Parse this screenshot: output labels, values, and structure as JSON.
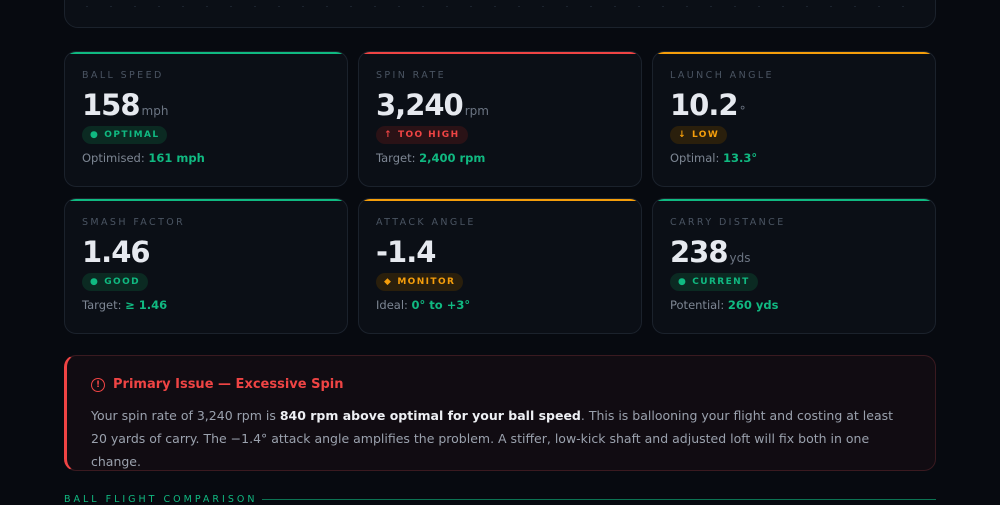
{
  "metrics": [
    {
      "label": "BALL SPEED",
      "value": "158",
      "unit": "mph",
      "badge": "OPTIMAL",
      "badge_icon": "dot-icon",
      "status_color": "#10b981",
      "foot_label": "Optimised:",
      "foot_value": "161 mph"
    },
    {
      "label": "SPIN RATE",
      "value": "3,240",
      "unit": "rpm",
      "badge": "TOO HIGH",
      "badge_icon": "arrow-up-icon",
      "status_color": "#ef4444",
      "foot_label": "Target:",
      "foot_value": "2,400 rpm"
    },
    {
      "label": "LAUNCH ANGLE",
      "value": "10.2",
      "unit": "°",
      "badge": "LOW",
      "badge_icon": "arrow-down-icon",
      "status_color": "#f59e0b",
      "foot_label": "Optimal:",
      "foot_value": "13.3°"
    },
    {
      "label": "SMASH FACTOR",
      "value": "1.46",
      "unit": "",
      "badge": "GOOD",
      "badge_icon": "dot-icon",
      "status_color": "#10b981",
      "foot_label": "Target:",
      "foot_value": "≥ 1.46"
    },
    {
      "label": "ATTACK ANGLE",
      "value": "-1.4",
      "unit": "",
      "badge": "MONITOR",
      "badge_icon": "diamond-icon",
      "status_color": "#f59e0b",
      "foot_label": "Ideal:",
      "foot_value": "0° to +3°"
    },
    {
      "label": "CARRY DISTANCE",
      "value": "238",
      "unit": "yds",
      "badge": "CURRENT",
      "badge_icon": "dot-icon",
      "status_color": "#10b981",
      "foot_label": "Potential:",
      "foot_value": "260 yds"
    }
  ],
  "alert": {
    "title": "Primary Issue — Excessive Spin",
    "text_before": "Your spin rate of 3,240 rpm is ",
    "text_bold": "840 rpm above optimal for your ball speed",
    "text_after": ". This is ballooning your flight and costing at least 20 yards of carry. The −1.4° attack angle amplifies the problem. A stiffer, low-kick shaft and adjusted loft will fix both in one change.",
    "color": "#ef4444"
  },
  "section": {
    "title": "BALL FLIGHT COMPARISON"
  }
}
